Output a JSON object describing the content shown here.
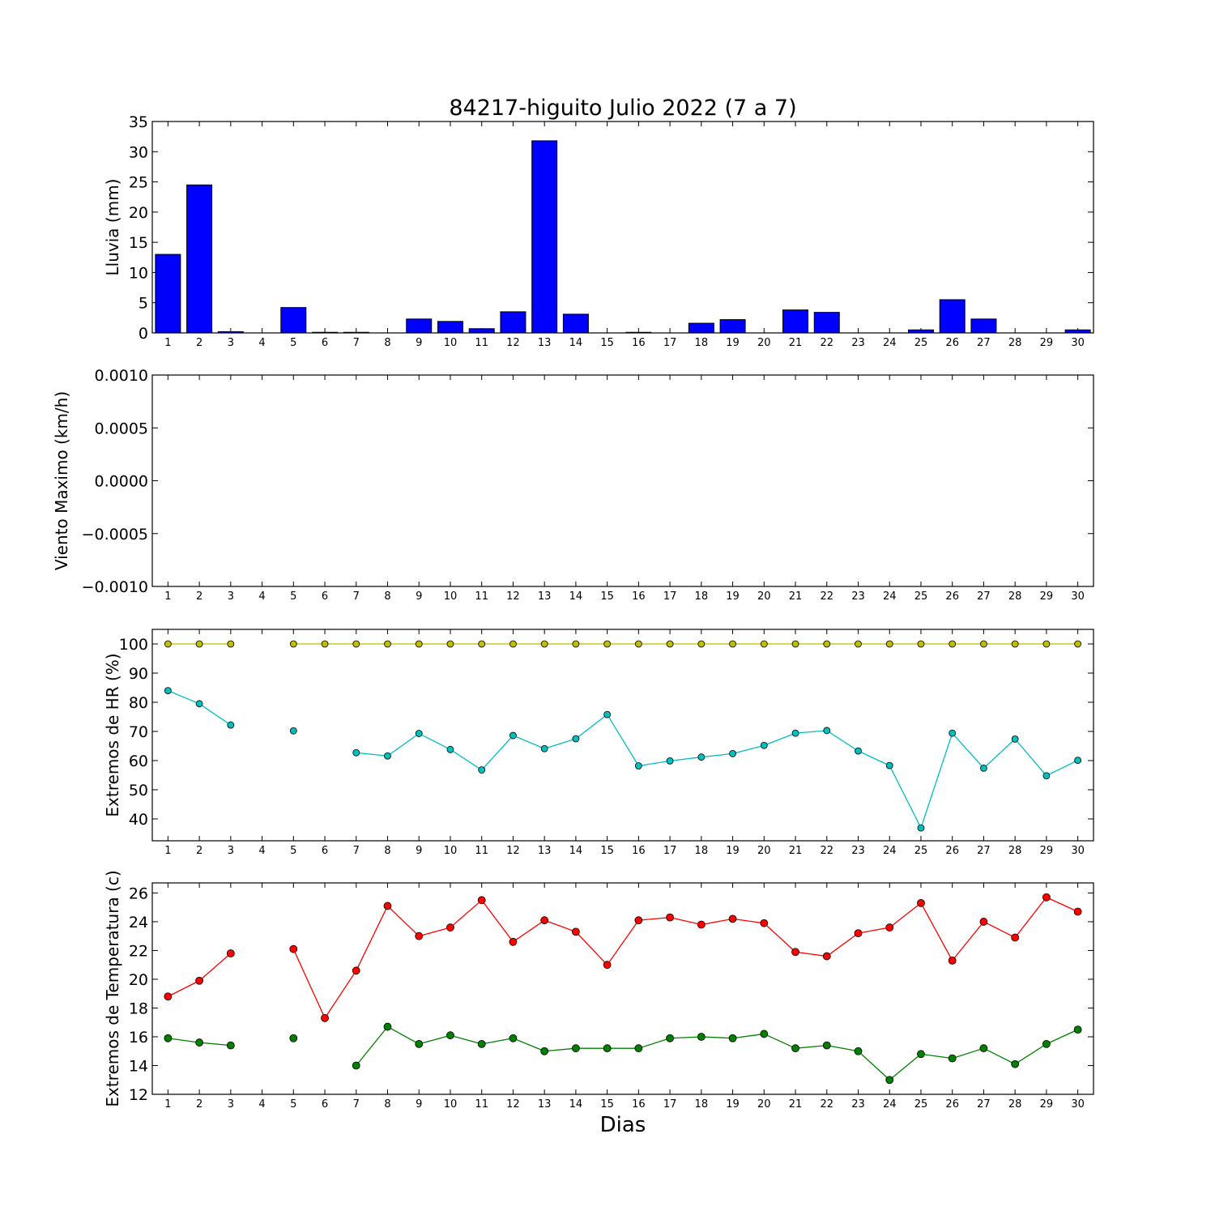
{
  "title": "84217-higuito Julio 2022  (7 a 7)",
  "xlabel": "Dias",
  "chart_data": [
    {
      "type": "bar",
      "ylabel": "Lluvia (mm)",
      "ylim": [
        0,
        35
      ],
      "yticks": [
        0,
        5,
        10,
        15,
        20,
        25,
        30,
        35
      ],
      "ytick_labels": [
        "0",
        "5",
        "10",
        "15",
        "20",
        "25",
        "30",
        "35"
      ],
      "categories": [
        1,
        2,
        3,
        4,
        5,
        6,
        7,
        8,
        9,
        10,
        11,
        12,
        13,
        14,
        15,
        16,
        17,
        18,
        19,
        20,
        21,
        22,
        23,
        24,
        25,
        26,
        27,
        28,
        29,
        30
      ],
      "series": [
        {
          "values": [
            13.0,
            24.5,
            0.2,
            0,
            4.2,
            0.1,
            0.1,
            0,
            2.3,
            1.9,
            0.7,
            3.5,
            31.8,
            3.1,
            0,
            0.1,
            0,
            1.6,
            2.2,
            0,
            3.8,
            3.4,
            0,
            0,
            0.5,
            5.5,
            2.3,
            0,
            0,
            0.5
          ],
          "color": "#0000ff"
        }
      ]
    },
    {
      "type": "line",
      "ylabel": "Viento Maximo (km/h)",
      "ylim": [
        -0.001,
        0.001
      ],
      "yticks": [
        -0.001,
        -0.0005,
        0,
        0.0005,
        0.001
      ],
      "ytick_labels": [
        "−0.0010",
        "−0.0005",
        "0.0000",
        "0.0005",
        "0.0010"
      ],
      "x": [
        1,
        2,
        3,
        4,
        5,
        6,
        7,
        8,
        9,
        10,
        11,
        12,
        13,
        14,
        15,
        16,
        17,
        18,
        19,
        20,
        21,
        22,
        23,
        24,
        25,
        26,
        27,
        28,
        29,
        30
      ],
      "series": []
    },
    {
      "type": "line",
      "ylabel": "Extremos de HR (%)",
      "ylim": [
        32.5,
        105
      ],
      "yticks": [
        40,
        50,
        60,
        70,
        80,
        90,
        100
      ],
      "ytick_labels": [
        "40",
        "50",
        "60",
        "70",
        "80",
        "90",
        "100"
      ],
      "x": [
        1,
        2,
        3,
        4,
        5,
        6,
        7,
        8,
        9,
        10,
        11,
        12,
        13,
        14,
        15,
        16,
        17,
        18,
        19,
        20,
        21,
        22,
        23,
        24,
        25,
        26,
        27,
        28,
        29,
        30
      ],
      "series": [
        {
          "values": [
            100,
            100,
            100,
            null,
            100,
            100,
            100,
            100,
            100,
            100,
            100,
            100,
            100,
            100,
            100,
            100,
            100,
            100,
            100,
            100,
            100,
            100,
            100,
            100,
            100,
            100,
            100,
            100,
            100,
            100
          ],
          "color": "#bfbf00",
          "marker_size": 4
        },
        {
          "values": [
            84,
            79.5,
            72.2,
            null,
            70.2,
            null,
            62.7,
            61.6,
            69.3,
            63.8,
            56.8,
            68.6,
            64.1,
            67.5,
            75.8,
            58.2,
            59.9,
            61.2,
            62.4,
            65.2,
            69.4,
            70.3,
            63.3,
            58.3,
            36.9,
            69.4,
            57.4,
            67.4,
            54.8,
            60.1
          ],
          "color": "#00bfbf",
          "marker_size": 4
        }
      ]
    },
    {
      "type": "line",
      "ylabel": "Extremos de Temperatura (c)",
      "ylim": [
        12,
        26.7
      ],
      "yticks": [
        12,
        14,
        16,
        18,
        20,
        22,
        24,
        26
      ],
      "ytick_labels": [
        "12",
        "14",
        "16",
        "18",
        "20",
        "22",
        "24",
        "26"
      ],
      "x": [
        1,
        2,
        3,
        4,
        5,
        6,
        7,
        8,
        9,
        10,
        11,
        12,
        13,
        14,
        15,
        16,
        17,
        18,
        19,
        20,
        21,
        22,
        23,
        24,
        25,
        26,
        27,
        28,
        29,
        30
      ],
      "series": [
        {
          "values": [
            18.8,
            19.9,
            21.8,
            null,
            22.1,
            17.3,
            20.6,
            25.1,
            23.0,
            23.6,
            25.5,
            22.6,
            24.1,
            23.3,
            21.0,
            24.1,
            24.3,
            23.8,
            24.2,
            23.9,
            21.9,
            21.6,
            23.2,
            23.6,
            25.3,
            21.3,
            24.0,
            22.9,
            25.7,
            24.7
          ],
          "color": "#ff0000",
          "marker_size": 4.5
        },
        {
          "values": [
            15.9,
            15.6,
            15.4,
            null,
            15.9,
            null,
            14.0,
            16.7,
            15.5,
            16.1,
            15.5,
            15.9,
            15.0,
            15.2,
            15.2,
            15.2,
            15.9,
            16.0,
            15.9,
            16.2,
            15.2,
            15.4,
            15.0,
            13.0,
            14.8,
            14.5,
            15.2,
            14.1,
            15.5,
            16.5
          ],
          "color": "#008000",
          "marker_size": 4.5
        }
      ]
    }
  ]
}
